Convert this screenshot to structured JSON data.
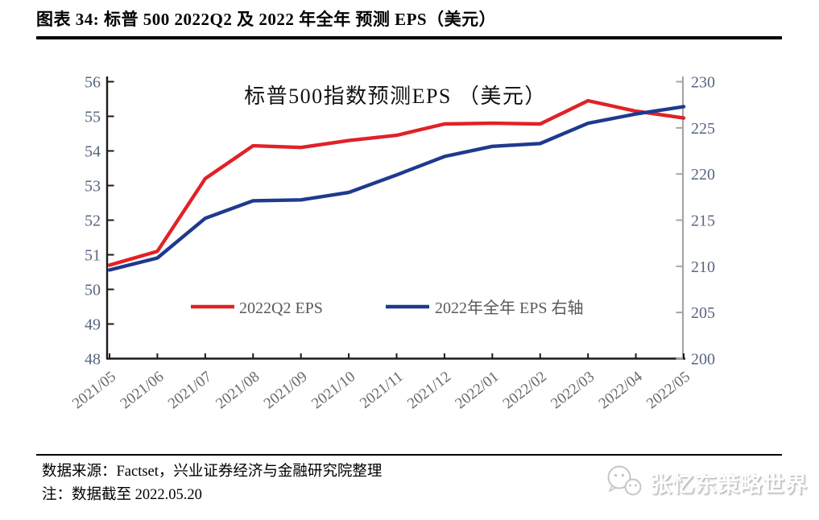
{
  "header": {
    "title": "图表 34:  标普 500 2022Q2 及 2022 年全年 预测 EPS（美元）"
  },
  "chart": {
    "title": "标普500指数预测EPS （美元）"
  },
  "chart_data": {
    "type": "line",
    "title": "标普500指数预测EPS （美元）",
    "categories": [
      "2021/05",
      "2021/06",
      "2021/07",
      "2021/08",
      "2021/09",
      "2021/10",
      "2021/11",
      "2021/12",
      "2022/01",
      "2022/02",
      "2022/03",
      "2022/04",
      "2022/05"
    ],
    "series": [
      {
        "name": "2022Q2 EPS",
        "axis": "left",
        "color": "#e02227",
        "values": [
          50.7,
          51.1,
          53.2,
          54.15,
          54.1,
          54.3,
          54.45,
          54.78,
          54.8,
          54.78,
          55.45,
          55.15,
          54.95
        ]
      },
      {
        "name": "2022年全年 EPS 右轴",
        "axis": "right",
        "color": "#1e3a8e",
        "values": [
          209.6,
          210.9,
          215.2,
          217.1,
          217.2,
          218.0,
          219.9,
          221.9,
          223.0,
          223.3,
          225.5,
          226.5,
          227.3
        ]
      }
    ],
    "left_axis": {
      "min": 48,
      "max": 56,
      "step": 1,
      "ticks": [
        56,
        55,
        54,
        53,
        52,
        51,
        50,
        49,
        48
      ]
    },
    "right_axis": {
      "min": 200,
      "max": 230,
      "step": 5,
      "ticks": [
        230,
        225,
        220,
        215,
        210,
        205,
        200
      ]
    },
    "grid": false,
    "legend_position": "inside-bottom-center"
  },
  "footer": {
    "source_line": "数据来源：Factset，兴业证券经济与金融研究院整理",
    "note_line": "注：数据截至 2022.05.20"
  },
  "watermark": {
    "text": "张忆东策略世界",
    "icon": "wechat-icon"
  },
  "colors": {
    "series_red": "#e02227",
    "series_navy": "#1e3a8e",
    "axis_black": "#1a1a1a",
    "right_axis_gray": "#a6a6a6",
    "y_tick_label": "#57657f",
    "x_tick_label": "#696969",
    "legend_text": "#595959"
  }
}
